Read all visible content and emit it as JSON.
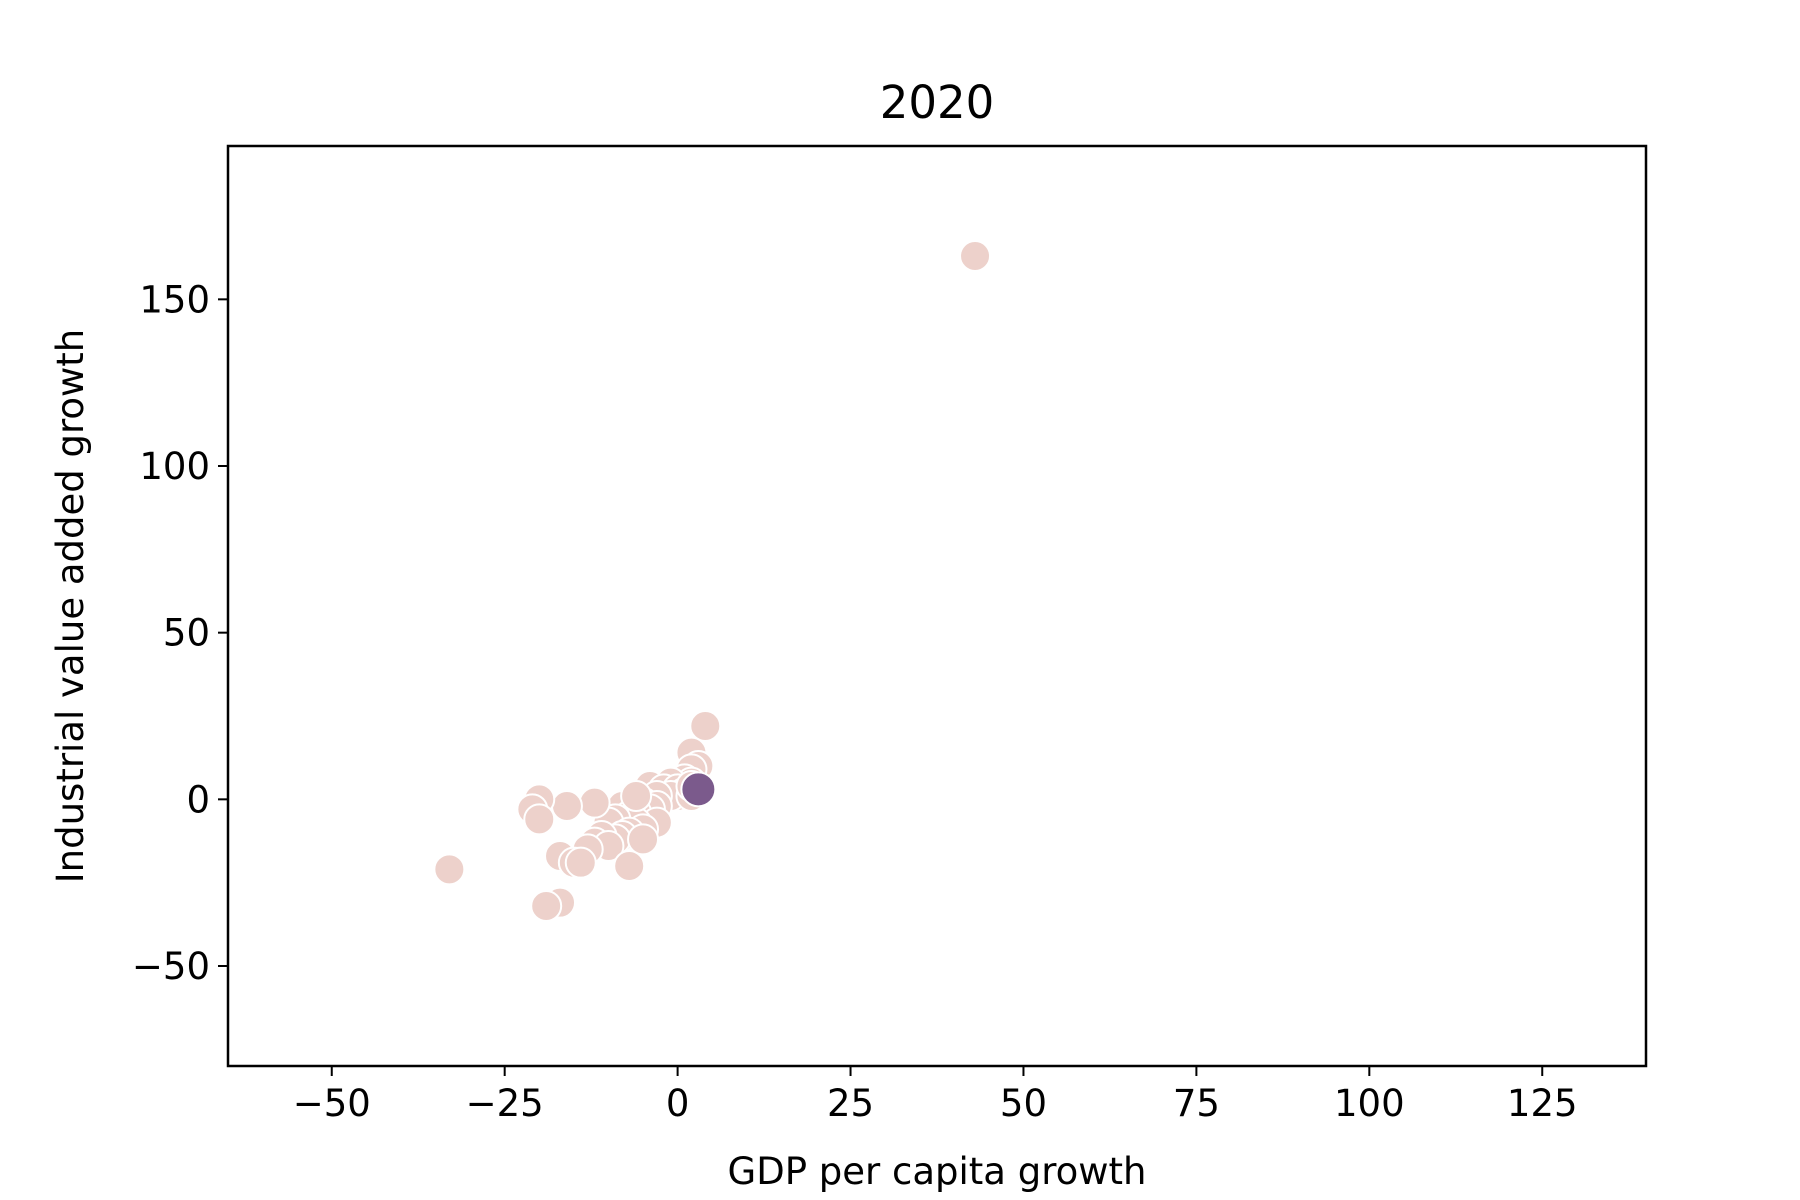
{
  "chart_data": {
    "type": "scatter",
    "title": "2020",
    "xlabel": "GDP per capita growth",
    "ylabel": "Industrial value added growth",
    "xlim": [
      -65,
      140
    ],
    "ylim": [
      -80,
      196
    ],
    "xticks": [
      -50,
      -25,
      0,
      25,
      50,
      75,
      100,
      125
    ],
    "yticks": [
      -50,
      0,
      50,
      100,
      150
    ],
    "xtick_labels": [
      "−50",
      "−25",
      "0",
      "25",
      "50",
      "75",
      "100",
      "125"
    ],
    "ytick_labels": [
      "−50",
      "0",
      "50",
      "100",
      "150"
    ],
    "grid": false,
    "legend": "none",
    "colors": {
      "point_light": "#edd1cb",
      "point_dark": "#7b5a8c",
      "point_edge": "#ffffff",
      "axes": "#000000"
    },
    "points": [
      {
        "x": 43,
        "y": 163,
        "shade": "light"
      },
      {
        "x": 4,
        "y": 22,
        "shade": "light"
      },
      {
        "x": 2,
        "y": 14,
        "shade": "light"
      },
      {
        "x": 3,
        "y": 10,
        "shade": "light"
      },
      {
        "x": 2,
        "y": 9,
        "shade": "light"
      },
      {
        "x": 1,
        "y": 6,
        "shade": "light"
      },
      {
        "x": 2,
        "y": 5,
        "shade": "light"
      },
      {
        "x": -1,
        "y": 5,
        "shade": "light"
      },
      {
        "x": -4,
        "y": 4,
        "shade": "light"
      },
      {
        "x": -2,
        "y": 3,
        "shade": "light"
      },
      {
        "x": 0,
        "y": 3,
        "shade": "light"
      },
      {
        "x": 1,
        "y": 2,
        "shade": "light"
      },
      {
        "x": 0,
        "y": 1,
        "shade": "light"
      },
      {
        "x": -1,
        "y": 1,
        "shade": "light"
      },
      {
        "x": -3,
        "y": 1,
        "shade": "light"
      },
      {
        "x": 2,
        "y": 1,
        "shade": "light"
      },
      {
        "x": 3,
        "y": 3,
        "shade": "dark"
      },
      {
        "x": -6,
        "y": 0,
        "shade": "light"
      },
      {
        "x": -5,
        "y": -1,
        "shade": "light"
      },
      {
        "x": -7,
        "y": -1,
        "shade": "light"
      },
      {
        "x": -8,
        "y": -2,
        "shade": "light"
      },
      {
        "x": -3,
        "y": -2,
        "shade": "light"
      },
      {
        "x": -4,
        "y": -3,
        "shade": "light"
      },
      {
        "x": -6,
        "y": -4,
        "shade": "light"
      },
      {
        "x": -7,
        "y": -5,
        "shade": "light"
      },
      {
        "x": -3,
        "y": -7,
        "shade": "light"
      },
      {
        "x": -6,
        "y": -7,
        "shade": "light"
      },
      {
        "x": -9,
        "y": -6,
        "shade": "light"
      },
      {
        "x": -10,
        "y": -7,
        "shade": "light"
      },
      {
        "x": -12,
        "y": -1,
        "shade": "light"
      },
      {
        "x": -16,
        "y": -2,
        "shade": "light"
      },
      {
        "x": -20,
        "y": 0,
        "shade": "light"
      },
      {
        "x": -21,
        "y": -3,
        "shade": "light"
      },
      {
        "x": -20,
        "y": -6,
        "shade": "light"
      },
      {
        "x": -5,
        "y": -9,
        "shade": "light"
      },
      {
        "x": -7,
        "y": -10,
        "shade": "light"
      },
      {
        "x": -8,
        "y": -11,
        "shade": "light"
      },
      {
        "x": -9,
        "y": -12,
        "shade": "light"
      },
      {
        "x": -11,
        "y": -11,
        "shade": "light"
      },
      {
        "x": -12,
        "y": -13,
        "shade": "light"
      },
      {
        "x": -5,
        "y": -12,
        "shade": "light"
      },
      {
        "x": -10,
        "y": -14,
        "shade": "light"
      },
      {
        "x": -13,
        "y": -15,
        "shade": "light"
      },
      {
        "x": -17,
        "y": -17,
        "shade": "light"
      },
      {
        "x": -15,
        "y": -19,
        "shade": "light"
      },
      {
        "x": -14,
        "y": -19,
        "shade": "light"
      },
      {
        "x": -7,
        "y": -20,
        "shade": "light"
      },
      {
        "x": -33,
        "y": -21,
        "shade": "light"
      },
      {
        "x": -17,
        "y": -31,
        "shade": "light"
      },
      {
        "x": -19,
        "y": -32,
        "shade": "light"
      },
      {
        "x": -6,
        "y": 1,
        "shade": "light"
      },
      {
        "x": 2,
        "y": 4,
        "shade": "light"
      }
    ]
  }
}
